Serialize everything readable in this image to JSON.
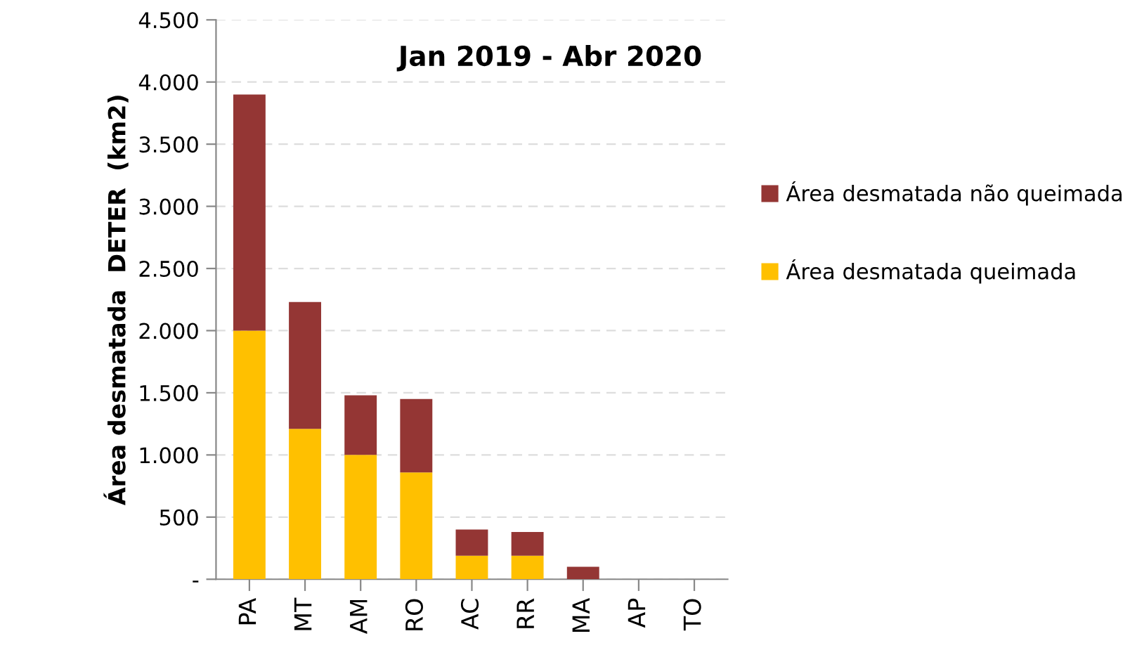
{
  "chart_data": {
    "type": "bar",
    "title": "Jan 2019 - Abr 2020",
    "ylabel": "Área desmatada  DETER  (km2)",
    "categories": [
      "PA",
      "MT",
      "AM",
      "RO",
      "AC",
      "RR",
      "MA",
      "AP",
      "TO"
    ],
    "series": [
      {
        "name": "Área desmatada queimada",
        "color": "#ffc000",
        "values": [
          2000,
          1210,
          1000,
          860,
          190,
          190,
          0,
          0,
          0
        ]
      },
      {
        "name": "Área desmatada não queimada",
        "color": "#943634",
        "values": [
          1900,
          1020,
          480,
          590,
          210,
          190,
          100,
          0,
          0
        ]
      }
    ],
    "stacked": true,
    "ylim": [
      0,
      4500
    ],
    "yticks": [
      {
        "value": 0,
        "label": "-"
      },
      {
        "value": 500,
        "label": "500"
      },
      {
        "value": 1000,
        "label": "1.000"
      },
      {
        "value": 1500,
        "label": "1.500"
      },
      {
        "value": 2000,
        "label": "2.000"
      },
      {
        "value": 2500,
        "label": "2.500"
      },
      {
        "value": 3000,
        "label": "3.000"
      },
      {
        "value": 3500,
        "label": "3.500"
      },
      {
        "value": 4000,
        "label": "4.000"
      },
      {
        "value": 4500,
        "label": "4.500"
      }
    ],
    "grid": "y",
    "legend": "right"
  }
}
